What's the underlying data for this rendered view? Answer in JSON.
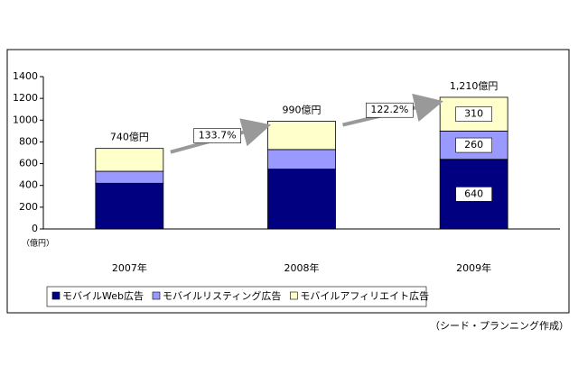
{
  "chart_data": {
    "type": "bar",
    "stacked": true,
    "categories": [
      "2007年",
      "2008年",
      "2009年"
    ],
    "series": [
      {
        "name": "モバイルWeb広告",
        "color": "#000080",
        "values": [
          420,
          550,
          640
        ]
      },
      {
        "name": "モバイルリスティング広告",
        "color": "#9999ff",
        "values": [
          110,
          180,
          260
        ]
      },
      {
        "name": "モバイルアフィリエイト広告",
        "color": "#ffffcc",
        "values": [
          210,
          260,
          310
        ]
      }
    ],
    "total_labels": [
      "740億円",
      "990億円",
      "1,210億円"
    ],
    "growth_labels": [
      "133.7%",
      "122.2%"
    ],
    "y_unit": "（億円）",
    "ylim": [
      0,
      1400
    ],
    "yticks": [
      0,
      200,
      400,
      600,
      800,
      1000,
      1200,
      1400
    ],
    "grid": false,
    "legend": "bottom",
    "source": "（シード・プランニング作成）"
  }
}
